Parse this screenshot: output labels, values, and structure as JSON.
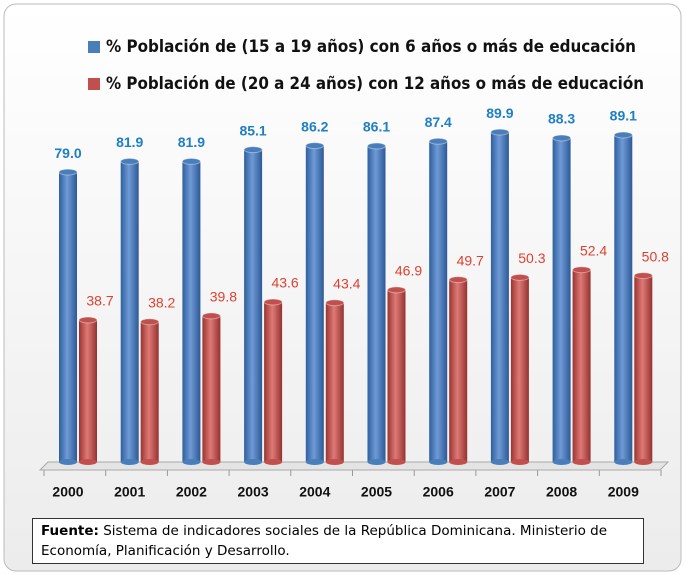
{
  "chart_data": {
    "type": "bar",
    "categories": [
      "2000",
      "2001",
      "2002",
      "2003",
      "2004",
      "2005",
      "2006",
      "2007",
      "2008",
      "2009"
    ],
    "series": [
      {
        "name": "% Población de (15 a 19 años) con 6 años o más de educación",
        "color": "#4a7ebb",
        "values": [
          79.0,
          81.9,
          81.9,
          85.1,
          86.2,
          86.1,
          87.4,
          89.9,
          88.3,
          89.1
        ],
        "value_labels": [
          "79.0",
          "81.9",
          "81.9",
          "85.1",
          "86.2",
          "86.1",
          "87.4",
          "89.9",
          "88.3",
          "89.1"
        ]
      },
      {
        "name": "% Población de (20 a 24 años) con 12 años o más de educación",
        "color": "#c0504d",
        "values": [
          38.7,
          38.2,
          39.8,
          43.6,
          43.4,
          46.9,
          49.7,
          50.3,
          52.4,
          50.8
        ],
        "value_labels": [
          "38.7",
          "38.2",
          "39.8",
          "43.6",
          "43.4",
          "46.9",
          "49.7",
          "50.3",
          "52.4",
          "50.8"
        ]
      }
    ],
    "ylim": [
      0,
      100
    ],
    "source_label": "Fuente:",
    "source": "Sistema de indicadores sociales de la República Dominicana. Ministerio de Economía, Planificación y Desarrollo."
  }
}
